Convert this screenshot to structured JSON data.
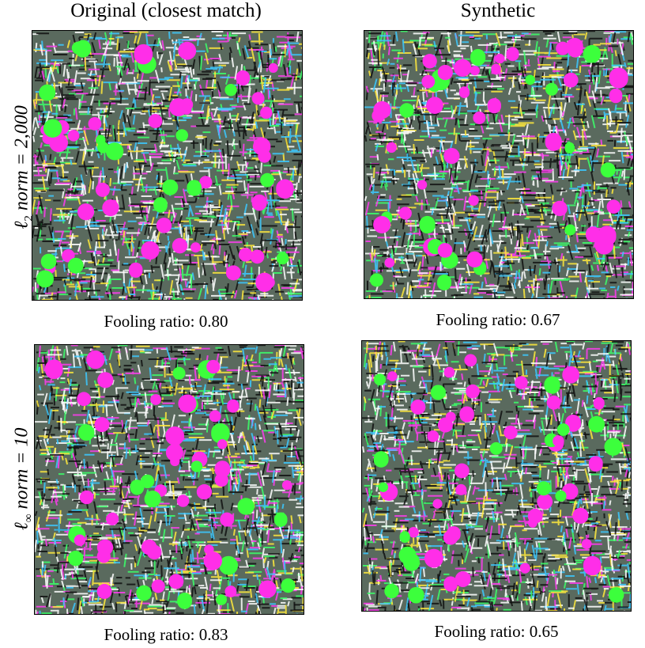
{
  "columns": [
    "Original (closest match)",
    "Synthetic"
  ],
  "rows": [
    {
      "symbol": "ℓ",
      "subscript": "2",
      "text": "norm = 2,000",
      "captions": [
        "Fooling ratio: 0.80",
        "Fooling ratio: 0.67"
      ]
    },
    {
      "symbol": "ℓ",
      "subscript": "∞",
      "text": "norm = 10",
      "captions": [
        "Fooling ratio: 0.83",
        "Fooling ratio: 0.65"
      ]
    }
  ]
}
